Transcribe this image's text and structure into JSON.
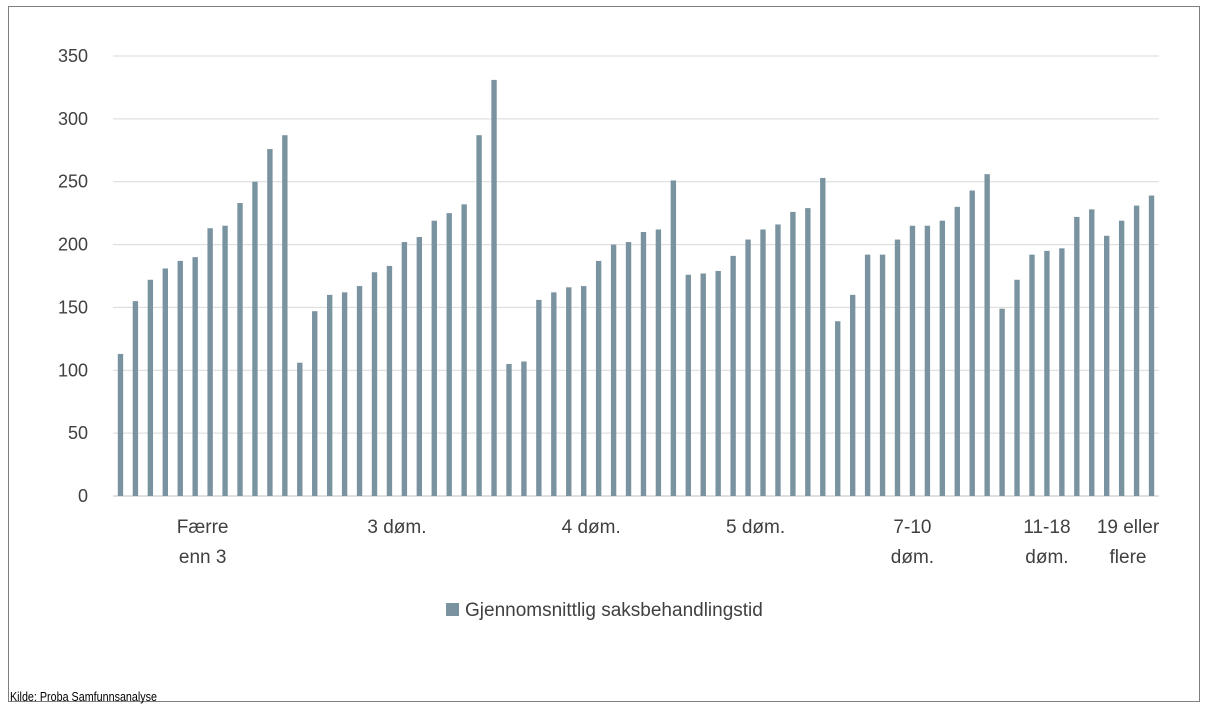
{
  "chart_data": {
    "type": "bar",
    "title": "",
    "xlabel": "",
    "ylabel": "",
    "ylim": [
      0,
      350
    ],
    "yticks": [
      0,
      50,
      100,
      150,
      200,
      250,
      300,
      350
    ],
    "grid": "horizontal",
    "legend_position": "bottom",
    "bar_color": "#7a93a0",
    "groups": [
      {
        "label_lines": [
          "Færre",
          "enn 3"
        ],
        "values": [
          113,
          155,
          172,
          181,
          187,
          190,
          213,
          215,
          233,
          250,
          276,
          287
        ]
      },
      {
        "label_lines": [
          "3 døm."
        ],
        "values": [
          106,
          147,
          160,
          162,
          167,
          178,
          183,
          202,
          206,
          219,
          225,
          232,
          287,
          331
        ]
      },
      {
        "label_lines": [
          "4 døm."
        ],
        "values": [
          105,
          107,
          156,
          162,
          166,
          167,
          187,
          200,
          202,
          210,
          212,
          251
        ]
      },
      {
        "label_lines": [
          "5 døm."
        ],
        "values": [
          176,
          177,
          179,
          191,
          204,
          212,
          216,
          226,
          229,
          253
        ]
      },
      {
        "label_lines": [
          "7-10",
          "døm."
        ],
        "values": [
          139,
          160,
          192,
          192,
          204,
          215,
          215,
          219,
          230,
          243,
          256
        ]
      },
      {
        "label_lines": [
          "11-18",
          "døm."
        ],
        "values": [
          149,
          172,
          192,
          195,
          197,
          222,
          228
        ]
      },
      {
        "label_lines": [
          "19 eller",
          "flere"
        ],
        "values": [
          207,
          219,
          231,
          239
        ]
      }
    ],
    "series": [
      {
        "name": "Gjennomsnittlig saksbehandlingstid"
      }
    ]
  },
  "source_note": "Kilde: Proba Samfunnsanalyse"
}
